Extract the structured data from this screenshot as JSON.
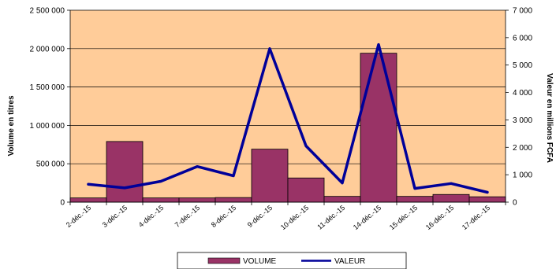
{
  "chart_data": {
    "type": "bar+line",
    "categories": [
      "2-déc.-15",
      "3-déc.-15",
      "4-déc.-15",
      "7-déc.-15",
      "8-déc.-15",
      "9-déc.-15",
      "10-déc.-15",
      "11-déc.-15",
      "14-déc.-15",
      "15-déc.-15",
      "16-déc.-15",
      "17-déc.-15"
    ],
    "series": [
      {
        "name": "VOLUME",
        "type": "bar",
        "axis": "left",
        "values": [
          55000,
          790000,
          55000,
          55000,
          60000,
          690000,
          315000,
          75000,
          1940000,
          75000,
          100000,
          70000
        ]
      },
      {
        "name": "VALEUR",
        "type": "line",
        "axis": "right",
        "values": [
          650,
          520,
          760,
          1300,
          960,
          5600,
          2050,
          700,
          5750,
          500,
          680,
          360
        ]
      }
    ],
    "ylabel": "Volume en titres",
    "y2label": "Valeur en millions FCFA",
    "ylim": [
      0,
      2500000
    ],
    "y2lim": [
      0,
      7000
    ],
    "yticks": [
      "0",
      "500 000",
      "1 000 000",
      "1 500 000",
      "2 000 000",
      "2 500 000"
    ],
    "y2ticks": [
      "0",
      "1 000",
      "2 000",
      "3 000",
      "4 000",
      "5 000",
      "6 000",
      "7 000"
    ],
    "legend_position": "bottom",
    "colors": {
      "plot_background": "#ffcc99",
      "bar_fill": "#993366",
      "line": "#000099",
      "gridline": "#000000"
    }
  }
}
